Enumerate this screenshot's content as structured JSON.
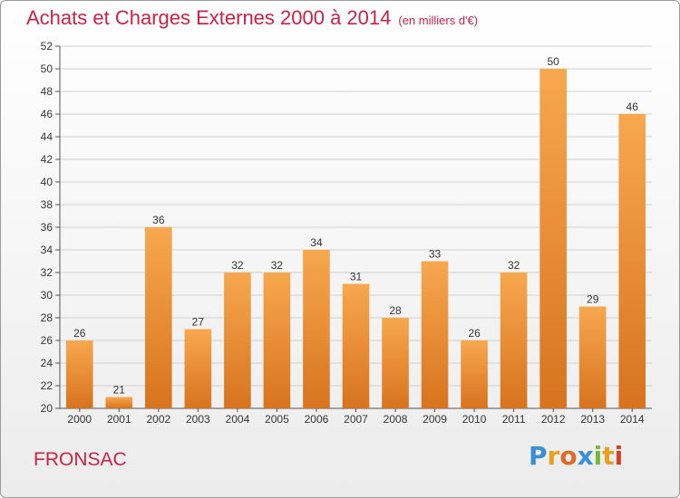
{
  "header": {
    "title": "Achats et Charges Externes 2000 à 2014",
    "subtitle": "(en milliers d'€)"
  },
  "footer": {
    "place": "FRONSAC",
    "logo_text": "Proxiti"
  },
  "colors": {
    "bar_top": "#f7a84f",
    "bar_bottom": "#d8731e",
    "title": "#cc2244",
    "grid": "#d0d0d0"
  },
  "chart_data": {
    "type": "bar",
    "title": "Achats et Charges Externes 2000 à 2014",
    "subtitle": "(en milliers d'€)",
    "xlabel": "",
    "ylabel": "",
    "categories": [
      "2000",
      "2001",
      "2002",
      "2003",
      "2004",
      "2005",
      "2006",
      "2007",
      "2008",
      "2009",
      "2010",
      "2011",
      "2012",
      "2013",
      "2014"
    ],
    "values": [
      26,
      21,
      36,
      27,
      32,
      32,
      34,
      31,
      28,
      33,
      26,
      32,
      50,
      29,
      46
    ],
    "ylim": [
      20,
      52
    ],
    "yticks": [
      20,
      22,
      24,
      26,
      28,
      30,
      32,
      34,
      36,
      38,
      40,
      42,
      44,
      46,
      48,
      50,
      52
    ],
    "grid": true,
    "legend": "none"
  }
}
